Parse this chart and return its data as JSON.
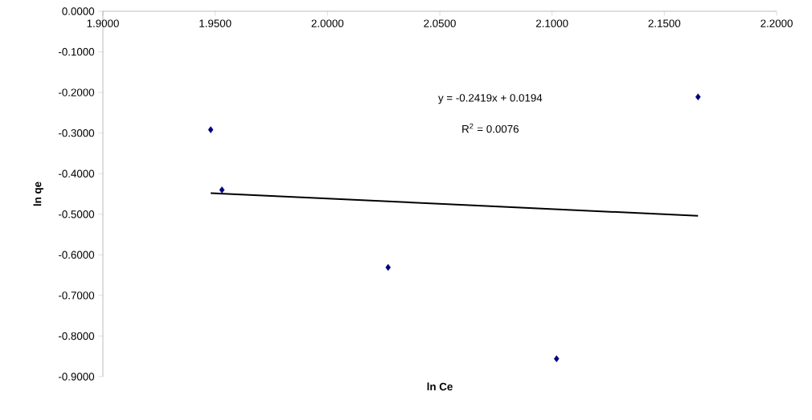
{
  "chart_data": {
    "type": "scatter",
    "xlabel": "ln Ce",
    "ylabel": "ln qe",
    "xlim": [
      1.9,
      2.2
    ],
    "ylim": [
      -0.9,
      0
    ],
    "xticks": [
      {
        "value": 1.9,
        "label": "1.9000"
      },
      {
        "value": 1.95,
        "label": "1.9500"
      },
      {
        "value": 2.0,
        "label": "2.0000"
      },
      {
        "value": 2.05,
        "label": "2.0500"
      },
      {
        "value": 2.1,
        "label": "2.1000"
      },
      {
        "value": 2.15,
        "label": "2.1500"
      },
      {
        "value": 2.2,
        "label": "2.2000"
      }
    ],
    "yticks": [
      {
        "value": 0,
        "label": "0.0000"
      },
      {
        "value": -0.1,
        "label": "-0.1000"
      },
      {
        "value": -0.2,
        "label": "-0.2000"
      },
      {
        "value": -0.3,
        "label": "-0.3000"
      },
      {
        "value": -0.4,
        "label": "-0.4000"
      },
      {
        "value": -0.5,
        "label": "-0.5000"
      },
      {
        "value": -0.6,
        "label": "-0.6000"
      },
      {
        "value": -0.7,
        "label": "-0.7000"
      },
      {
        "value": -0.8,
        "label": "-0.8000"
      },
      {
        "value": -0.9,
        "label": "-0.9000"
      }
    ],
    "series": [
      {
        "marker": "diamond",
        "color": "#000080",
        "x": [
          1.948,
          1.953,
          2.027,
          2.102,
          2.165
        ],
        "values": [
          -0.292,
          -0.44,
          -0.631,
          -0.856,
          -0.211
        ]
      },
      {
        "type": "line",
        "color": "#000000",
        "x": [
          1.948,
          2.165
        ],
        "values": [
          -0.448,
          -0.504
        ]
      }
    ],
    "annotations": [
      "y = -0.2419x + 0.0194",
      "R$^{2}$ = 0.0076"
    ]
  }
}
